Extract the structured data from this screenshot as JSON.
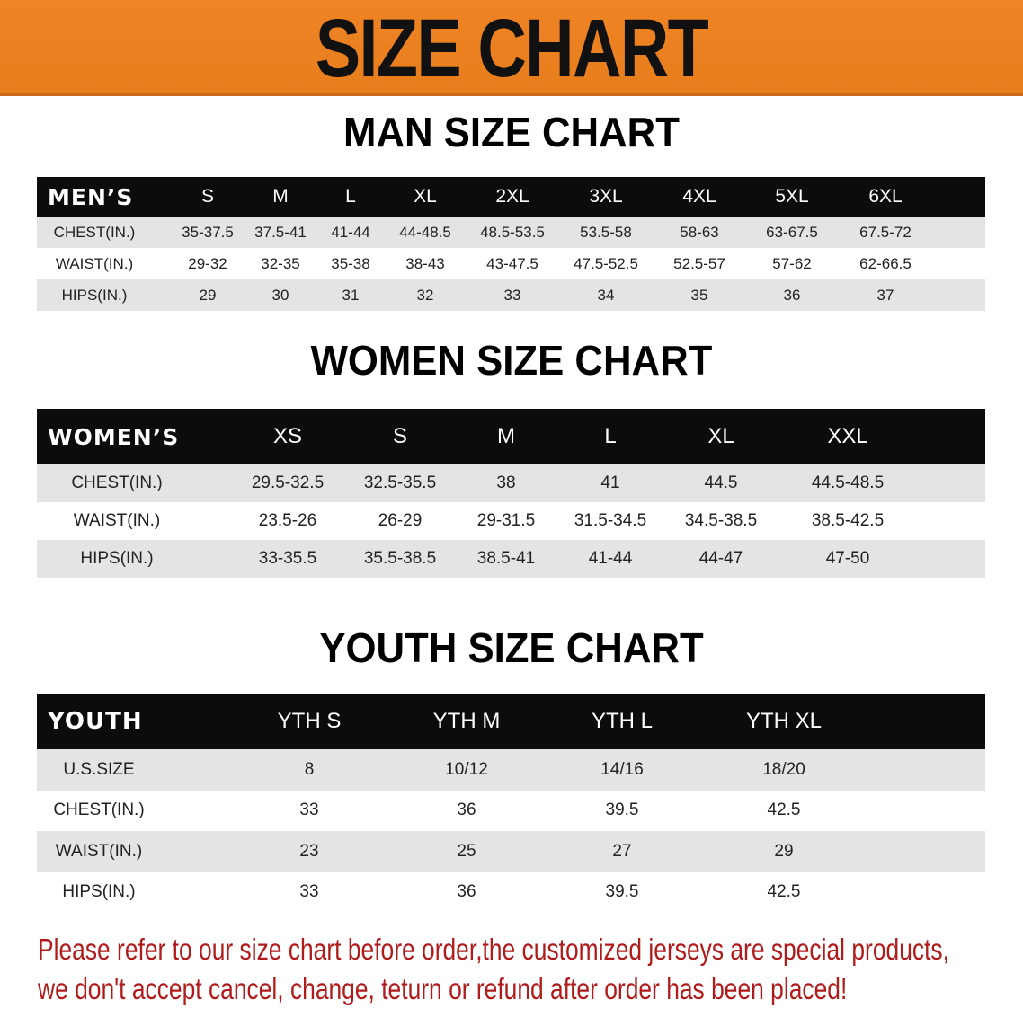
{
  "banner": {
    "title": "SIZE CHART",
    "color": "#ec821f"
  },
  "men": {
    "title": "MAN SIZE CHART",
    "header_label": "MEN’S",
    "sizes": [
      "S",
      "M",
      "L",
      "XL",
      "2XL",
      "3XL",
      "4XL",
      "5XL",
      "6XL"
    ],
    "rows": [
      {
        "label": "CHEST(IN.)",
        "values": [
          "35-37.5",
          "37.5-41",
          "41-44",
          "44-48.5",
          "48.5-53.5",
          "53.5-58",
          "58-63",
          "63-67.5",
          "67.5-72"
        ]
      },
      {
        "label": "WAIST(IN.)",
        "values": [
          "29-32",
          "32-35",
          "35-38",
          "38-43",
          "43-47.5",
          "47.5-52.5",
          "52.5-57",
          "57-62",
          "62-66.5"
        ]
      },
      {
        "label": "HIPS(IN.)",
        "values": [
          "29",
          "30",
          "31",
          "32",
          "33",
          "34",
          "35",
          "36",
          "37"
        ]
      }
    ]
  },
  "women": {
    "title": "WOMEN SIZE CHART",
    "header_label": "WOMEN’S",
    "sizes": [
      "XS",
      "S",
      "M",
      "L",
      "XL",
      "XXL"
    ],
    "rows": [
      {
        "label": "CHEST(IN.)",
        "values": [
          "29.5-32.5",
          "32.5-35.5",
          "38",
          "41",
          "44.5",
          "44.5-48.5"
        ]
      },
      {
        "label": "WAIST(IN.)",
        "values": [
          "23.5-26",
          "26-29",
          "29-31.5",
          "31.5-34.5",
          "34.5-38.5",
          "38.5-42.5"
        ]
      },
      {
        "label": "HIPS(IN.)",
        "values": [
          "33-35.5",
          "35.5-38.5",
          "38.5-41",
          "41-44",
          "44-47",
          "47-50"
        ]
      }
    ]
  },
  "youth": {
    "title": "YOUTH SIZE CHART",
    "header_label": "YOUTH",
    "sizes": [
      "YTH S",
      "YTH M",
      "YTH L",
      "YTH XL"
    ],
    "rows": [
      {
        "label": "U.S.SIZE",
        "values": [
          "8",
          "10/12",
          "14/16",
          "18/20"
        ]
      },
      {
        "label": "CHEST(IN.)",
        "values": [
          "33",
          "36",
          "39.5",
          "42.5"
        ]
      },
      {
        "label": "WAIST(IN.)",
        "values": [
          "23",
          "25",
          "27",
          "29"
        ]
      },
      {
        "label": "HIPS(IN.)",
        "values": [
          "33",
          "36",
          "39.5",
          "42.5"
        ]
      }
    ]
  },
  "notice": {
    "line1": "Please refer to our size chart before order,the customized jerseys are special products,",
    "line2": "we don't accept cancel, change, teturn or refund after order has been placed!",
    "color": "#b01c1c"
  }
}
